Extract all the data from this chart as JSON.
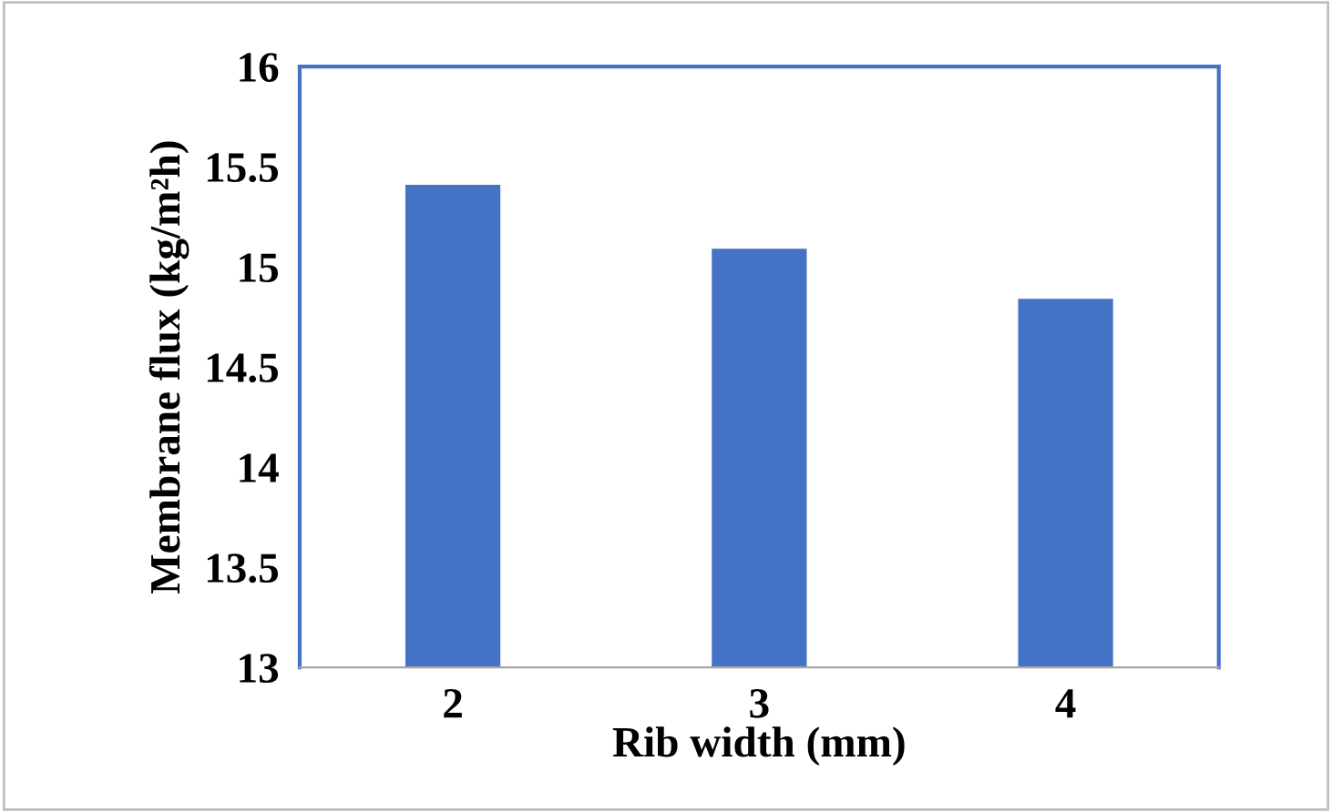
{
  "chart_data": {
    "type": "bar",
    "xlabel": "Rib width (mm)",
    "ylabel": "Membrane flux (kg/m²h)",
    "categories": [
      "2",
      "3",
      "4"
    ],
    "values": [
      15.41,
      15.09,
      14.84
    ],
    "color": "#4472c4",
    "ylim": [
      13,
      16
    ],
    "yticks": [
      13,
      13.5,
      14,
      14.5,
      15,
      15.5,
      16
    ],
    "grid": false
  }
}
